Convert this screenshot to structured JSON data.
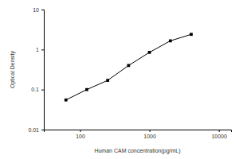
{
  "chart_data": {
    "type": "line",
    "x_label": "Human CAM concentration(pg/mL)",
    "y_label": "Optical Density",
    "x": [
      62.5,
      125,
      250,
      500,
      1000,
      2000,
      4000
    ],
    "values": [
      0.055,
      0.1,
      0.17,
      0.4,
      0.85,
      1.65,
      2.4
    ],
    "color": "#000000",
    "marker": "square",
    "log": true,
    "xlim": [
      30,
      15000
    ],
    "xticks": [
      100,
      1000,
      10000
    ],
    "ylim": [
      0.01,
      10
    ],
    "yticks": [
      0.01,
      0.1,
      1,
      10
    ],
    "grid": false
  }
}
